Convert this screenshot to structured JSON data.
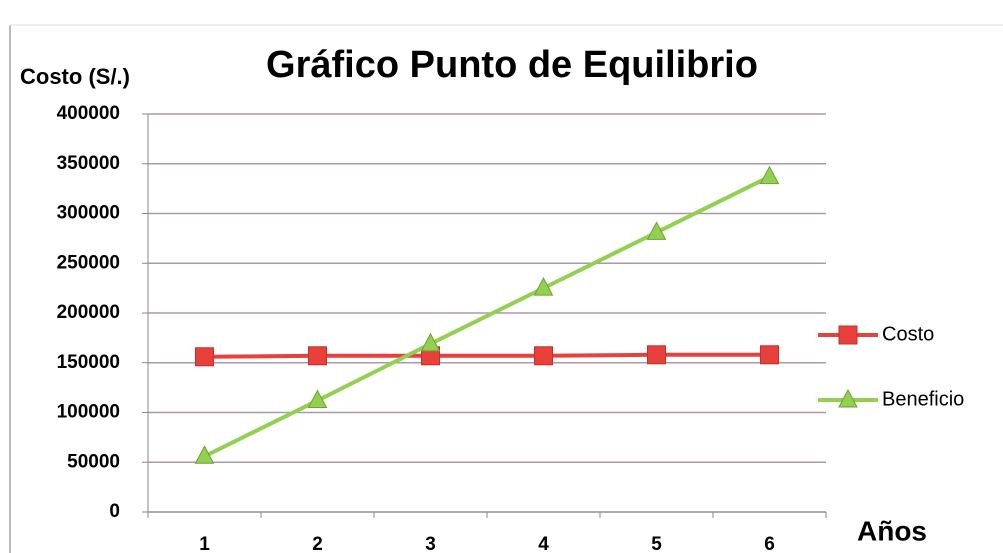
{
  "chart_data": {
    "type": "line",
    "title": "Gráfico Punto de Equilibrio",
    "y_label": "Costo (S/.)",
    "x_label": "Años",
    "categories": [
      "1",
      "2",
      "3",
      "4",
      "5",
      "6"
    ],
    "series": [
      {
        "name": "Costo",
        "color": "#e8413c",
        "marker": "square",
        "values": [
          156000,
          157000,
          157000,
          157000,
          158000,
          158000
        ]
      },
      {
        "name": "Beneficio",
        "color": "#92d050",
        "marker": "triangle",
        "values": [
          56000,
          112000,
          169000,
          225000,
          281000,
          337000
        ]
      }
    ],
    "ylim": [
      0,
      400000
    ],
    "yticks": [
      0,
      50000,
      100000,
      150000,
      200000,
      250000,
      300000,
      350000,
      400000
    ],
    "grid": true,
    "legend": "right"
  }
}
